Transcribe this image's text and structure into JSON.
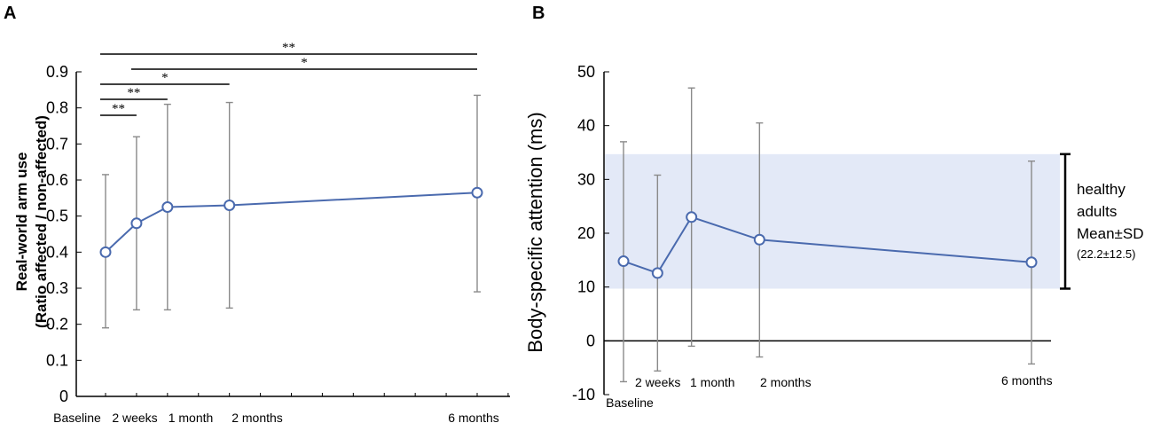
{
  "panels": {
    "a": {
      "letter": "A"
    },
    "b": {
      "letter": "B"
    }
  },
  "healthy": {
    "label_line1": "healthy",
    "label_line2": "adults",
    "label_line3": "Mean±SD",
    "label_line4": "(22.2±12.5)"
  },
  "chart_data": [
    {
      "id": "A",
      "type": "line",
      "title": "",
      "xlabel": "",
      "ylabel_line1": "Real-world arm use",
      "ylabel_line2": "(Ratio affected / non-affected)",
      "ylim": [
        0,
        0.9
      ],
      "yticks": [
        "0",
        "0.1",
        "0.2",
        "0.3",
        "0.4",
        "0.5",
        "0.6",
        "0.7",
        "0.8",
        "0.9"
      ],
      "x_weeks": [
        0,
        2,
        4,
        8,
        24
      ],
      "categories": [
        "Baseline",
        "2 weeks",
        "1 month",
        "2 months",
        "6 months"
      ],
      "series": [
        {
          "name": "Real-world arm use",
          "values": [
            0.4,
            0.48,
            0.525,
            0.53,
            0.565
          ],
          "error_upper": [
            0.615,
            0.72,
            0.81,
            0.815,
            0.835
          ],
          "error_lower": [
            0.19,
            0.24,
            0.24,
            0.245,
            0.29
          ],
          "color": "#4a6aae"
        }
      ],
      "significance": [
        {
          "from": 0,
          "to": 1,
          "label": "**"
        },
        {
          "from": 0,
          "to": 2,
          "label": "**"
        },
        {
          "from": 0,
          "to": 3,
          "label": "*"
        },
        {
          "from": 1,
          "to": 4,
          "label": "*"
        },
        {
          "from": 0,
          "to": 4,
          "label": "**"
        }
      ],
      "grid": false
    },
    {
      "id": "B",
      "type": "line",
      "title": "",
      "xlabel": "",
      "ylabel": "Body-specific attention (ms)",
      "ylim": [
        -10,
        50
      ],
      "yticks": [
        "-10",
        "0",
        "10",
        "20",
        "30",
        "40",
        "50"
      ],
      "x_weeks": [
        0,
        2,
        4,
        8,
        24
      ],
      "categories": [
        "Baseline",
        "2 weeks",
        "1 month",
        "2 months",
        "6 months"
      ],
      "series": [
        {
          "name": "Body-specific attention",
          "values": [
            14.8,
            12.6,
            23.0,
            18.8,
            14.6
          ],
          "error_upper": [
            37.0,
            30.8,
            47.0,
            40.5,
            33.4
          ],
          "error_lower": [
            -7.6,
            -5.6,
            -1.0,
            -3.0,
            -4.3
          ],
          "color": "#4a6aae"
        }
      ],
      "reference_band": {
        "mean": 22.2,
        "sd": 12.5,
        "lower": 9.7,
        "upper": 34.7,
        "color": "#e3e9f7"
      },
      "grid": false
    }
  ]
}
